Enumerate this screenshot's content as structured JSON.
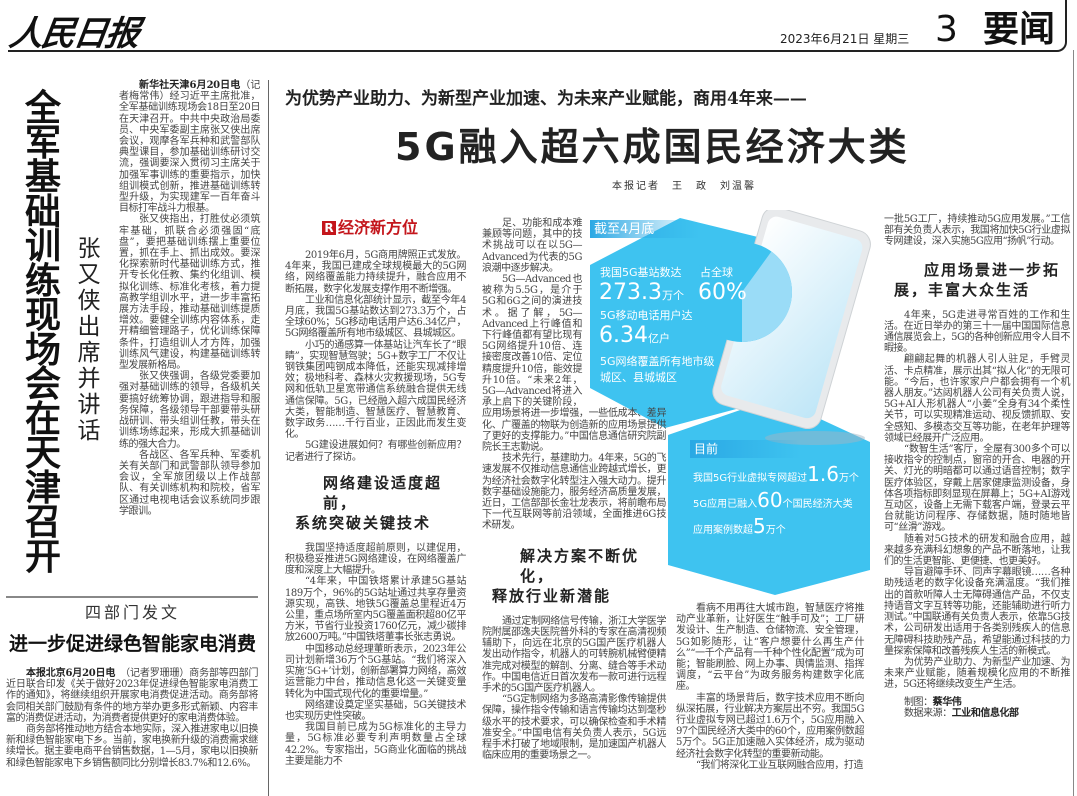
{
  "masthead": {
    "logo": "人民日报",
    "date": "2023年6月21日  星期三",
    "page_number": "3",
    "section": "要闻"
  },
  "left_article": {
    "headline": "全军基础训练现场会在天津召开",
    "subhead": "张又侠出席并讲话",
    "dateline": "新华社天津6月20日电",
    "paragraphs": [
      "（记者梅常伟）经习近平主席批准，全军基础训练现场会18日至20日在天津召开。中共中央政治局委员、中央军委副主席张又侠出席会议，观摩各军兵种和武警部队典型课目，参加基础训练研讨交流，强调要深入贯彻习主席关于加强军事训练的重要指示，加快组训模式创新，推进基础训练转型升级，为实现建军一百年奋斗目标打牢战斗力根基。",
      "张又侠指出，打胜仗必须筑牢基础，抓联合必须强固“底盘”，要把基础训练摆上重要位置，抓在手上、抓出成效。要深化探索新时代基础训练方式，推开专长化任教、集约化组训、模拟化训练、标准化考核，着力提高教学组训水平，进一步丰富拓展方法手段，推动基础训练提质增效。要健全训练内容体系，走开精细管理路子，优化训练保障条件，打造组训人才方阵，加强训练风气建设，构建基础训练转型发展新格局。",
      "张又侠强调，各级党委要加强对基础训练的领导，各级机关要搞好统筹协调，跟进指导和服务保障，各级领导干部要带头研战研训、带头组训任教，带头在训练场练起来，形成大抓基础训练的强大合力。",
      "各战区、各军兵种、军委机关有关部门和武警部队领导参加会议，全军旅团级以上作战部队、有关训练机构和院校，省军区通过电视电话会议系统同步跟学跟训。"
    ]
  },
  "bottom_article": {
    "kicker": "四部门发文",
    "headline": "进一步促进绿色智能家电消费",
    "dateline": "本报北京6月20日电",
    "paragraphs": [
      "　（记者罗珊珊）商务部等四部门近日联合印发《关于做好2023年促进绿色智能家电消费工作的通知》，将继续组织开展家电消费促进活动。商务部将会同相关部门鼓励有条件的地方举办更多形式新颖、内容丰富的消费促进活动，为消费者提供更好的家电消费体验。",
      "商务部将推动地方结合本地实际，深入推进家电以旧换新和绿色智能家电下乡。当前，家电换新升级的消费需求继续增长。据主要电商平台销售数据，1—5月，家电以旧换新和绿色智能家电下乡销售额同比分别增长83.7%和12.6%。"
    ]
  },
  "main_article": {
    "kicker": "为优势产业助力、为新型产业加速、为未来产业赋能，商用4年来——",
    "title": "5G融入超六成国民经济大类",
    "byline": "本报记者　王　政　刘温馨",
    "column_label": "经济新方位",
    "column_label_icon": "R",
    "col1": [
      "2019年6月，5G商用牌照正式发放。4年来，我国已建成全球规模最大的5G网络，网络覆盖能力持续提升，融合应用不断拓展，数字化发展支撑作用不断增强。",
      "工业和信息化部统计显示，截至今年4月底，我国5G基站数达到273.3万个，占全球60%；5G移动电话用户达6.34亿户，5G网络覆盖所有地市级城区、县城城区。",
      "小巧的通感算一体基站让汽车长了“眼睛”，实现智慧驾驶；5G+数字工厂不仅让钢铁集团吨钢成本降低，还能实现减排增效；极地科考、森林火灾救援现场，5G专网和低轨卫星宽带通信系统融合提供无线通信保障。5G，已经融入超六成国民经济大类，智能制造、智慧医疗、智慧教育、数字政务……千行百业，正因此而发生变化。",
      "5G建设进展如何？有哪些创新应用？记者进行了探访。"
    ],
    "heading1": [
      "网络建设适度超前，",
      "系统突破关键技术"
    ],
    "col1b": [
      "我国坚持适度超前原则，以建促用，积极稳妥推进5G网络建设，在网络覆盖广度和深度上大幅提升。",
      "“4年来，中国铁塔累计承建5G基站189万个，96%的5G站址通过共享存量资源实现，高铁、地铁5G覆盖总里程近4万公里，重点场所室内5G覆盖面积超80亿平方米，节省行业投资1760亿元，减少碳排放2600万吨。”中国铁塔董事长张志勇说。",
      "中国移动总经理董昕表示，2023年公司计划新增36万个5G基站。“我们将深入实施‘5G+’计划，创新部署算力网络，高效运营能力中台，推动信息化这一关键变量转化为中国式现代化的重要增量。”",
      "网络建设奠定坚实基础，5G关键技术也实现历史性突破。",
      "我国目前已成为5G标准化的主导力量，5G标准必要专利声明数量占全球42.2%。专家指出，5G商业化面临的挑战主要是能力不"
    ],
    "col2": [
      "足、功能和成本难兼顾等问题，其中的技术挑战可以在以5G—Advanced为代表的5G浪潮中逐步解决。",
      "5G—Advanced也被称为5.5G，是介于5G和6G之间的演进技术。据了解，5G—Advanced上行峰值和下行峰值都有望比现有5G网络提升10倍、连接密度改善10倍、定位精度提升10倍，能效提升10倍。“未来2年，5G—Advanced将进入承上启下的关键阶段，应用场景将进一步增强，一些低成本、差异化、广覆盖的物联为创造新的应用场景提供了更好的支撑能力。”中国信息通信研究院副院长王志勤说。",
      "技术先行，基建助力。4年来，5G的飞速发展不仅推动信息通信业跨越式增长，更为经济社会数字化转型注入强大动力。提升数字基础设施能力，服务经济高质量发展，近日，工信部部长金壮龙表示，将前瞻布局下一代互联网等前沿领域，全面推进6G技术研发。"
    ],
    "heading2": [
      "解决方案不断优化，",
      "释放行业新潜能"
    ],
    "col2b": [
      "通过定制网络信号传输，浙江大学医学院附属邵逸夫医院普外科的专家在高清视频辅助下，向远在北京的5G国产医疗机器人发出动作指令，机器人的可转腕机械臂便精准完成对模型的解剖、分离、缝合等手术动作。中国电信近日首次发布一款可进行远程手术的5G国产医疗机器人。",
      "“5G定制网络为多路高清影像传输提供保障，操作指令传输和语言传输均达到毫秒级水平的技术要求，可以确保检查和手术精准安全。”中国电信有关负责人表示，5G远程手术打破了地域限制，是加速国产机器人临床应用的重要场景之一。"
    ],
    "col3": [
      "看病不用再往大城市跑，智慧医疗将推动产业革新，让好医生“触手可及”；工厂研发设计、生产制造、仓储物流、安全管理，5G如影随形，让“客户想要什么再生产什么”“一千个产品有一千种个性化配置”成为可能；智能刷脸、网上办事、舆情监测、指挥调度，“云平台”为政务服务构建数字化底座。",
      "丰富的场景背后，数字技术应用不断向纵深拓展，行业解决方案层出不穷。我国5G行业虚拟专网已超过1.6万个，5G应用融入97个国民经济大类中的60个，应用案例数超5万个。5G正加速融入实体经济，成为驱动经济社会数字化转型的重要新动能。",
      "“我们将深化工业互联网融合应用，打造"
    ],
    "col4a": "一批5G工厂，持续推动5G应用发展。”工信部有关负责人表示，我国将加快5G行业虚拟专网建设，深入实施5G应用“扬帆”行动。",
    "heading3": [
      "应用场景进一步拓",
      "展，丰富大众生活"
    ],
    "col4": [
      "4年来，5G走进寻常百姓的工作和生活。在近日举办的第三十一届中国国际信息通信展览会上，5G的各种创新应用令人目不暇接。",
      "翩翩起舞的机器人引人驻足，手臂灵活、卡点精准，展示出其“拟人化”的无限可能。“今后，也许家家户户都会拥有一个机器人朋友。”达闼机器人公司有关负责人说，5G+AI人形机器人“小姜”全身有34个柔性关节，可以实现精准运动、视反馈抓取、安全感知、多模态交互等功能，在老年护理等领域已经展开广泛应用。",
      "“数智生活”客厅，全屋有300多个可以接收指令的控制点，窗帘的开合、电器的开关、灯光的明暗都可以通过语音控制；数字医疗体验区，穿戴上居家健康监测设备，身体各项指标即刻显现在屏幕上；5G+AI游戏互动区，设备上无需下载客户端，登录云平台就能访问程序、存储数据，随时随地皆可“丝滑”游戏。",
      "随着对5G技术的研发和融合应用，越来越多充满科幻想象的产品不断落地，让我们的生活更智能、更便捷、也更美好。",
      "导盲避障手环、同声字幕眼镜……各种助残适老的数字化设备充满温度。“我们推出的首款听障人士无障碍通信产品，不仅支持语音文字互转等功能，还能辅助进行听力测试。”中国联通有关负责人表示，依靠5G技术，公司研发出适用于各类别残疾人的信息无障碍科技助残产品，希望能通过科技的力量探索保障和改善残疾人生活的新模式。",
      "为优势产业助力、为新型产业加速、为未来产业赋能，随着规模化应用的不断推进，5G还将继续改变生产生活。"
    ],
    "credits": {
      "graphic_label": "制图：",
      "graphic_name": "蔡华伟",
      "source_label": "数据来源：",
      "source_name": "工业和信息化部"
    }
  },
  "infographic": {
    "colors": {
      "primary": "#3ec3f0",
      "light": "#9adcf7",
      "label_bar": "#2aa8e4"
    },
    "top_label": "截至4月底",
    "stat1_label": "我国5G基站数达",
    "stat1_value": "273.3",
    "stat1_unit": "万个",
    "stat2_label": "5G移动电话用户达",
    "stat2_value": "6.34",
    "stat2_unit": "亿户",
    "stat3_line1": "5G网络覆盖所有地市级",
    "stat3_line2": "城区、县城城区",
    "pie_label": "占全球",
    "pie_value": "60%",
    "pie_share": 60,
    "bottom_label": "目前",
    "b1_pre": "我国5G行业虚拟专网超过",
    "b1_value": "1.6",
    "b1_unit": "万个",
    "b2_pre": "5G应用已融入",
    "b2_value": "60",
    "b2_unit": "个国民经济大类",
    "b3_pre": "应用案例数超",
    "b3_value": "5",
    "b3_unit": "万个"
  }
}
